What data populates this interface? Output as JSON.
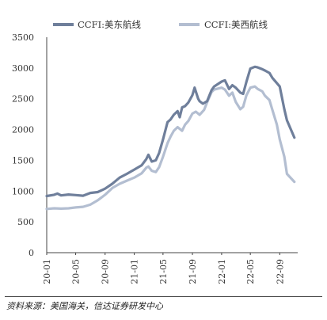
{
  "chart_data": {
    "type": "line",
    "x_ticks": [
      "20-01",
      "20-05",
      "20-09",
      "21-01",
      "21-05",
      "21-09",
      "22-01",
      "22-05",
      "22-09"
    ],
    "y_ticks": [
      0,
      500,
      1000,
      1500,
      2000,
      2500,
      3000,
      3500
    ],
    "ylim": [
      0,
      3500
    ],
    "grid": false,
    "legend_position": "top",
    "series": [
      {
        "name": "CCFI:美东航线",
        "color": "#6f7f9b",
        "points": [
          [
            "2020-01",
            920
          ],
          [
            "2020-02",
            940
          ],
          [
            "2020-02-15",
            960
          ],
          [
            "2020-03",
            930
          ],
          [
            "2020-04",
            945
          ],
          [
            "2020-05",
            935
          ],
          [
            "2020-06",
            925
          ],
          [
            "2020-07",
            970
          ],
          [
            "2020-08",
            985
          ],
          [
            "2020-09",
            1040
          ],
          [
            "2020-10",
            1120
          ],
          [
            "2020-11",
            1220
          ],
          [
            "2020-12",
            1280
          ],
          [
            "2021-01",
            1350
          ],
          [
            "2021-02",
            1420
          ],
          [
            "2021-02-20",
            1520
          ],
          [
            "2021-03",
            1590
          ],
          [
            "2021-03-15",
            1480
          ],
          [
            "2021-04",
            1500
          ],
          [
            "2021-04-15",
            1620
          ],
          [
            "2021-05",
            1840
          ],
          [
            "2021-05-20",
            2120
          ],
          [
            "2021-06",
            2160
          ],
          [
            "2021-06-15",
            2240
          ],
          [
            "2021-07",
            2300
          ],
          [
            "2021-07-10",
            2200
          ],
          [
            "2021-07-20",
            2360
          ],
          [
            "2021-08",
            2380
          ],
          [
            "2021-08-15",
            2440
          ],
          [
            "2021-09",
            2560
          ],
          [
            "2021-09-10",
            2680
          ],
          [
            "2021-09-25",
            2500
          ],
          [
            "2021-10",
            2460
          ],
          [
            "2021-10-15",
            2420
          ],
          [
            "2021-11",
            2460
          ],
          [
            "2021-11-20",
            2640
          ],
          [
            "2021-12",
            2700
          ],
          [
            "2022-01",
            2780
          ],
          [
            "2022-01-15",
            2800
          ],
          [
            "2022-02",
            2660
          ],
          [
            "2022-02-15",
            2720
          ],
          [
            "2022-03",
            2680
          ],
          [
            "2022-03-20",
            2600
          ],
          [
            "2022-04",
            2580
          ],
          [
            "2022-04-15",
            2780
          ],
          [
            "2022-05",
            2990
          ],
          [
            "2022-05-20",
            3020
          ],
          [
            "2022-06",
            3010
          ],
          [
            "2022-06-20",
            2980
          ],
          [
            "2022-07",
            2960
          ],
          [
            "2022-07-20",
            2920
          ],
          [
            "2022-08",
            2840
          ],
          [
            "2022-09",
            2700
          ],
          [
            "2022-09-20",
            2330
          ],
          [
            "2022-10",
            2150
          ],
          [
            "2022-11",
            1870
          ]
        ]
      },
      {
        "name": "CCFI:美西航线",
        "color": "#b3bed1",
        "points": [
          [
            "2020-01",
            710
          ],
          [
            "2020-02",
            720
          ],
          [
            "2020-03",
            715
          ],
          [
            "2020-04",
            720
          ],
          [
            "2020-05",
            735
          ],
          [
            "2020-06",
            745
          ],
          [
            "2020-07",
            780
          ],
          [
            "2020-08",
            850
          ],
          [
            "2020-09",
            940
          ],
          [
            "2020-10",
            1050
          ],
          [
            "2020-11",
            1120
          ],
          [
            "2020-12",
            1170
          ],
          [
            "2021-01",
            1220
          ],
          [
            "2021-02",
            1290
          ],
          [
            "2021-02-20",
            1380
          ],
          [
            "2021-03",
            1400
          ],
          [
            "2021-03-15",
            1330
          ],
          [
            "2021-04",
            1310
          ],
          [
            "2021-04-15",
            1390
          ],
          [
            "2021-05",
            1560
          ],
          [
            "2021-05-20",
            1780
          ],
          [
            "2021-06",
            1880
          ],
          [
            "2021-06-15",
            1980
          ],
          [
            "2021-07",
            2040
          ],
          [
            "2021-07-20",
            1980
          ],
          [
            "2021-08",
            2080
          ],
          [
            "2021-08-15",
            2140
          ],
          [
            "2021-09",
            2260
          ],
          [
            "2021-09-15",
            2290
          ],
          [
            "2021-10",
            2240
          ],
          [
            "2021-10-20",
            2320
          ],
          [
            "2021-11",
            2440
          ],
          [
            "2021-11-20",
            2610
          ],
          [
            "2021-12",
            2650
          ],
          [
            "2022-01",
            2680
          ],
          [
            "2022-01-15",
            2650
          ],
          [
            "2022-02",
            2550
          ],
          [
            "2022-02-15",
            2600
          ],
          [
            "2022-03",
            2450
          ],
          [
            "2022-03-20",
            2330
          ],
          [
            "2022-04",
            2370
          ],
          [
            "2022-04-15",
            2560
          ],
          [
            "2022-05",
            2680
          ],
          [
            "2022-05-20",
            2700
          ],
          [
            "2022-06",
            2660
          ],
          [
            "2022-06-20",
            2620
          ],
          [
            "2022-07",
            2550
          ],
          [
            "2022-07-20",
            2480
          ],
          [
            "2022-08",
            2320
          ],
          [
            "2022-08-20",
            2080
          ],
          [
            "2022-09",
            1840
          ],
          [
            "2022-09-20",
            1560
          ],
          [
            "2022-10",
            1280
          ],
          [
            "2022-11",
            1150
          ]
        ]
      }
    ]
  },
  "footer": {
    "source": "资料来源：美国海关，信达证券研发中心"
  }
}
